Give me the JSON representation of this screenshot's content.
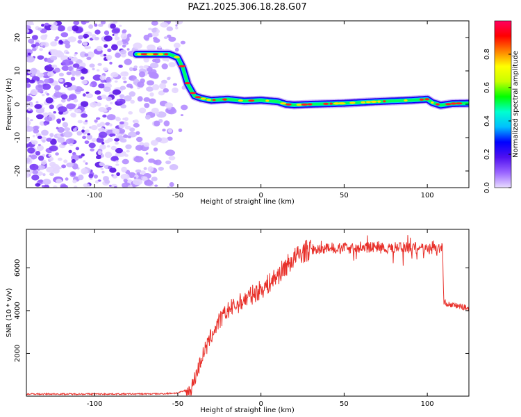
{
  "title": "PAZ1.2025.306.18.28.G07",
  "chart_data": [
    {
      "type": "heatmap",
      "name": "spectrogram",
      "xlabel": "Height of straight line (km)",
      "ylabel": "Frequency (Hz)",
      "xlim": [
        -141,
        125
      ],
      "ylim": [
        -25,
        25
      ],
      "xticks": [
        -100,
        -50,
        0,
        50,
        100
      ],
      "yticks": [
        -20,
        -10,
        0,
        10,
        20
      ],
      "ridge": {
        "x": [
          -75,
          -55,
          -50,
          -47,
          -44,
          -40,
          -36,
          -30,
          -20,
          -10,
          0,
          10,
          15,
          20,
          30,
          50,
          70,
          90,
          100,
          103,
          108,
          115,
          125
        ],
        "frequency": [
          15,
          15,
          14,
          11,
          6,
          2.5,
          1.8,
          1.2,
          1.5,
          1.0,
          1.2,
          0.8,
          0.0,
          -0.2,
          0.0,
          0.3,
          0.8,
          1.2,
          1.5,
          0.5,
          -0.3,
          0.2,
          0.3
        ]
      },
      "noise_region": {
        "x": [
          -141,
          -45
        ],
        "frequency": [
          -25,
          25
        ]
      },
      "colorbar": {
        "label": "Normalized spectral amplitude",
        "range": [
          0,
          1
        ],
        "ticks": [
          "0.0",
          "0.2",
          "0.4",
          "0.6",
          "0.8"
        ],
        "colors": [
          "#e8dcff",
          "#9a64ff",
          "#5010f0",
          "#0000ff",
          "#00bfff",
          "#00ffd0",
          "#00ff00",
          "#c8ff00",
          "#ffff00",
          "#ff8000",
          "#ff0000",
          "#ff0060"
        ]
      }
    },
    {
      "type": "line",
      "name": "snr",
      "xlabel": "Height of straight line (km)",
      "ylabel": "SNR (10 * v/v)",
      "xlim": [
        -141,
        125
      ],
      "ylim": [
        0,
        7800
      ],
      "xticks": [
        -100,
        -50,
        0,
        50,
        100
      ],
      "yticks": [
        2000,
        4000,
        6000
      ],
      "color": "#e8302a",
      "series": [
        {
          "name": "SNR",
          "x": [
            -141,
            -120,
            -100,
            -80,
            -60,
            -50,
            -46,
            -44,
            -42,
            -40,
            -38,
            -36,
            -34,
            -32,
            -30,
            -28,
            -26,
            -24,
            -22,
            -20,
            -18,
            -16,
            -14,
            -12,
            -10,
            -8,
            -6,
            -4,
            -2,
            0,
            2,
            4,
            6,
            8,
            10,
            12,
            14,
            16,
            18,
            20,
            22,
            24,
            26,
            28,
            30,
            35,
            40,
            45,
            50,
            55,
            60,
            65,
            70,
            75,
            80,
            85,
            90,
            95,
            100,
            105,
            108,
            109,
            110,
            111,
            112,
            115,
            120,
            125
          ],
          "values": [
            100,
            100,
            100,
            100,
            110,
            150,
            250,
            200,
            300,
            800,
            1200,
            1700,
            2100,
            2400,
            2800,
            3100,
            3400,
            3600,
            3800,
            4000,
            4100,
            4200,
            4300,
            4400,
            4500,
            4600,
            4700,
            4800,
            4900,
            5000,
            5100,
            5200,
            5350,
            5500,
            5650,
            5800,
            6000,
            6150,
            6300,
            6450,
            6550,
            6650,
            6750,
            6800,
            6850,
            6900,
            6950,
            6900,
            6950,
            6900,
            6900,
            6950,
            7000,
            6900,
            6950,
            7000,
            6900,
            6950,
            6900,
            6900,
            6950,
            6900,
            4300,
            4400,
            4300,
            4250,
            4200,
            4100
          ]
        }
      ]
    }
  ]
}
